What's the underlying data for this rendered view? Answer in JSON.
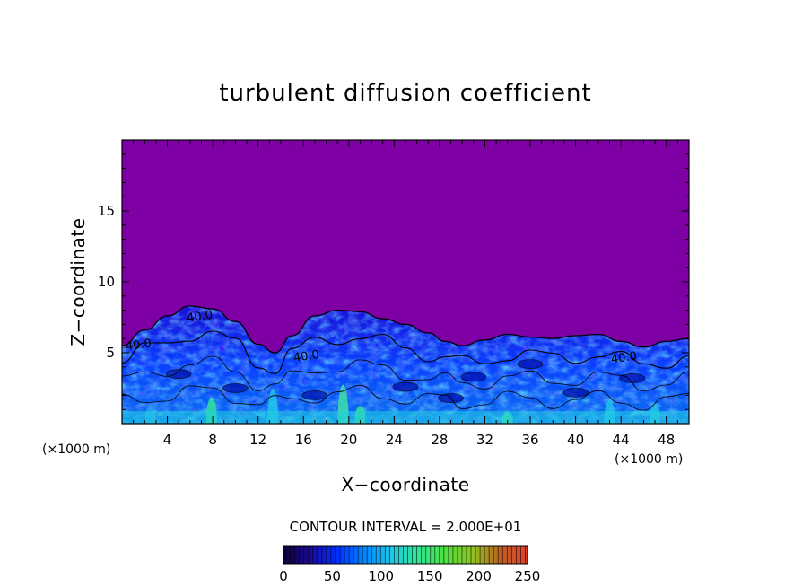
{
  "chart_data": {
    "type": "heatmap",
    "title": "turbulent diffusion coefficient",
    "xlabel": "X−coordinate",
    "ylabel": "Z−coordinate",
    "x_unit_left": "(×1000 m)",
    "x_unit_right": "(×1000 m)",
    "xlim": [
      0,
      50
    ],
    "ylim": [
      0,
      20
    ],
    "x_ticks": [
      4,
      8,
      12,
      16,
      20,
      24,
      28,
      32,
      36,
      40,
      44,
      48
    ],
    "y_ticks": [
      5,
      10,
      15
    ],
    "contour_interval_text": "CONTOUR INTERVAL = 2.000E+01",
    "contour_labels": [
      {
        "x": 6.9,
        "z": 7.3,
        "text": "40.0"
      },
      {
        "x": 1.5,
        "z": 5.3,
        "text": "40.0"
      },
      {
        "x": 16.3,
        "z": 4.5,
        "text": "40.0"
      },
      {
        "x": 44.3,
        "z": 4.4,
        "text": "40.0"
      }
    ],
    "colorbar": {
      "min": 0,
      "max": 250,
      "ticks": [
        0,
        50,
        100,
        150,
        200,
        250
      ],
      "colors": [
        "#10003a",
        "#1a0a9a",
        "#0030ff",
        "#0088ff",
        "#20c8e8",
        "#30e890",
        "#50e040",
        "#90c020",
        "#c06020",
        "#e04030"
      ]
    },
    "field_top_profile": [
      [
        0,
        5.5
      ],
      [
        2,
        6.6
      ],
      [
        4,
        7.6
      ],
      [
        6,
        8.3
      ],
      [
        8,
        8.1
      ],
      [
        10,
        7.2
      ],
      [
        12,
        5.6
      ],
      [
        13.5,
        5.0
      ],
      [
        15,
        6.2
      ],
      [
        17,
        7.6
      ],
      [
        19,
        8.0
      ],
      [
        21,
        7.9
      ],
      [
        23,
        7.4
      ],
      [
        25,
        7.0
      ],
      [
        27,
        6.4
      ],
      [
        28.5,
        5.8
      ],
      [
        30,
        5.5
      ],
      [
        32,
        5.9
      ],
      [
        34,
        6.3
      ],
      [
        36,
        6.1
      ],
      [
        38,
        6.0
      ],
      [
        40,
        6.2
      ],
      [
        42,
        6.3
      ],
      [
        44,
        5.8
      ],
      [
        46,
        5.4
      ],
      [
        48,
        5.8
      ],
      [
        50,
        6.0
      ]
    ],
    "background_color": "#7e00a5",
    "grid": false
  }
}
